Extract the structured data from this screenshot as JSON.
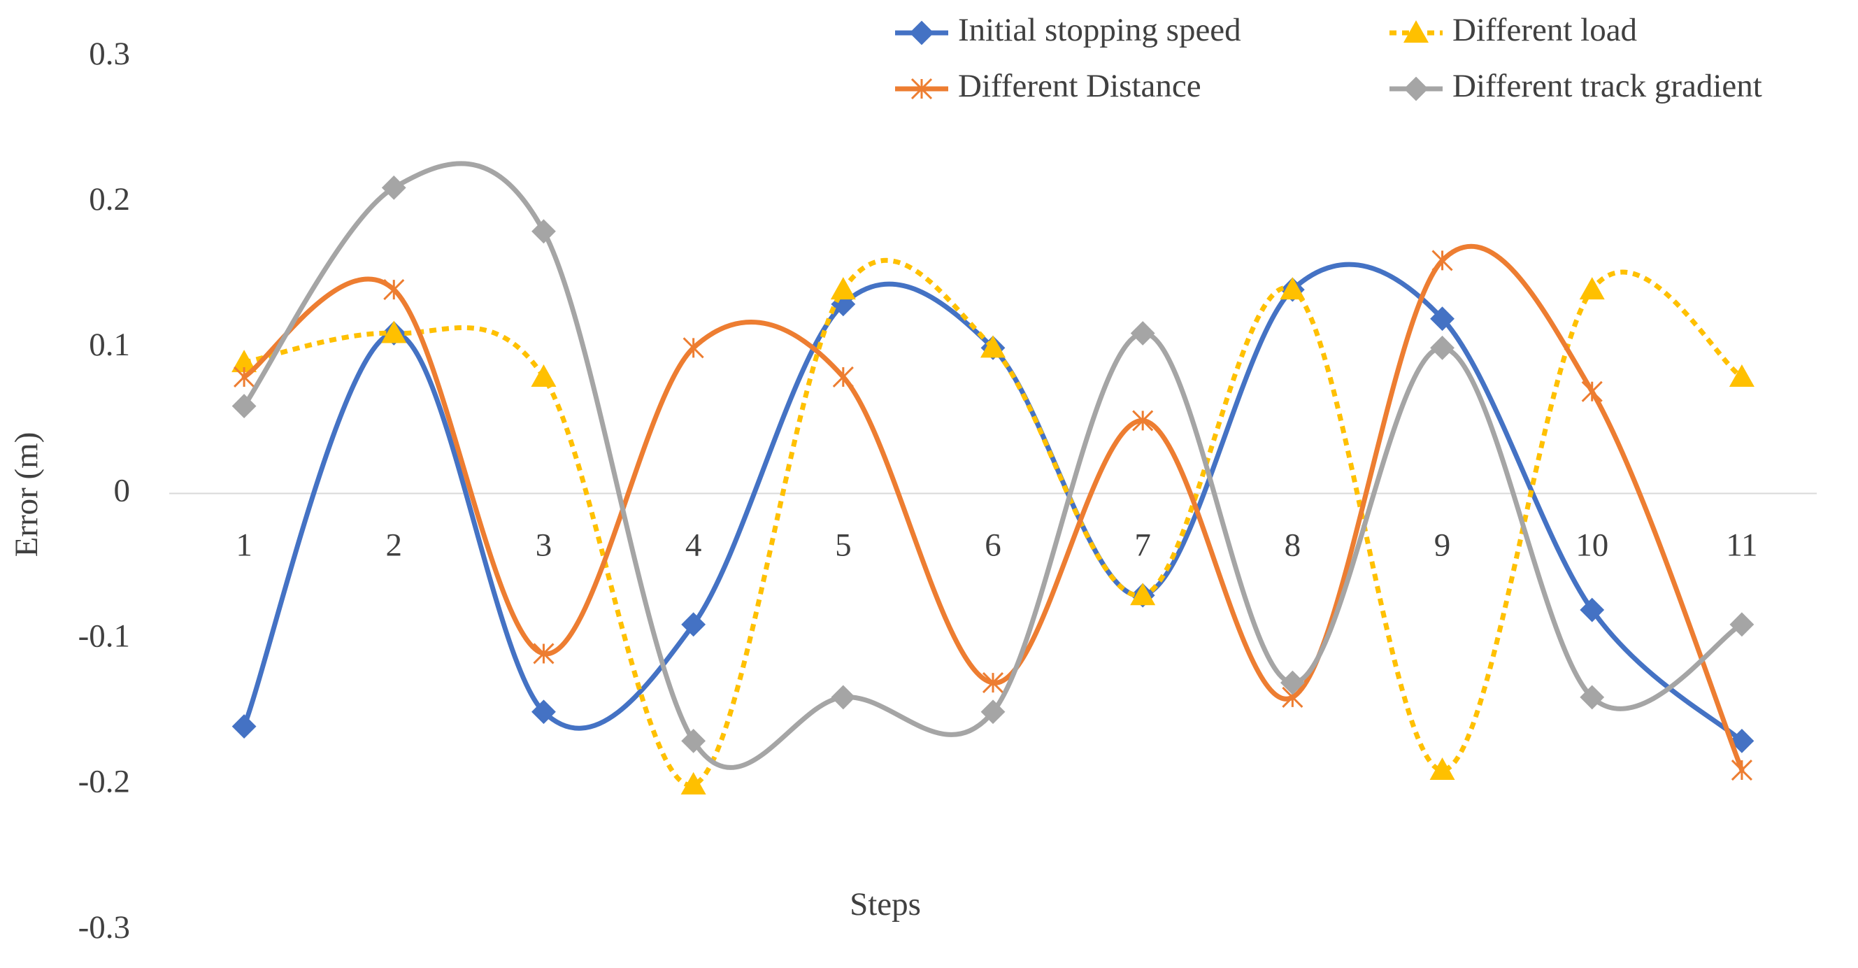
{
  "chart_data": {
    "type": "line",
    "smooth": true,
    "x_label": "Steps",
    "y_label": "Error (m)",
    "categories": [
      "1",
      "2",
      "3",
      "4",
      "5",
      "6",
      "7",
      "8",
      "9",
      "10",
      "11"
    ],
    "ylim": [
      -0.3,
      0.3
    ],
    "yticks": [
      0.3,
      0.2,
      0.1,
      0,
      -0.1,
      -0.2,
      -0.3
    ],
    "grid": false,
    "legend": "top",
    "series": [
      {
        "name": "Initial stopping speed",
        "color": "#4472c4",
        "marker": "diamond",
        "dash": false,
        "values": [
          -0.16,
          0.11,
          -0.15,
          -0.09,
          0.13,
          0.1,
          -0.07,
          0.14,
          0.12,
          -0.08,
          -0.17
        ]
      },
      {
        "name": "Different load",
        "color": "#ffc000",
        "marker": "triangle",
        "dash": true,
        "values": [
          0.09,
          0.11,
          0.08,
          -0.2,
          0.14,
          0.1,
          -0.07,
          0.14,
          -0.19,
          0.14,
          0.08
        ]
      },
      {
        "name": "Different Distance",
        "color": "#ed7d31",
        "marker": "star",
        "dash": false,
        "values": [
          0.08,
          0.14,
          -0.11,
          0.1,
          0.08,
          -0.13,
          0.05,
          -0.14,
          0.16,
          0.07,
          -0.19
        ]
      },
      {
        "name": "Different track gradient",
        "color": "#a5a5a5",
        "marker": "diamond",
        "dash": false,
        "values": [
          0.06,
          0.21,
          0.18,
          -0.17,
          -0.14,
          -0.15,
          0.11,
          -0.13,
          0.1,
          -0.14,
          -0.09
        ]
      }
    ]
  }
}
